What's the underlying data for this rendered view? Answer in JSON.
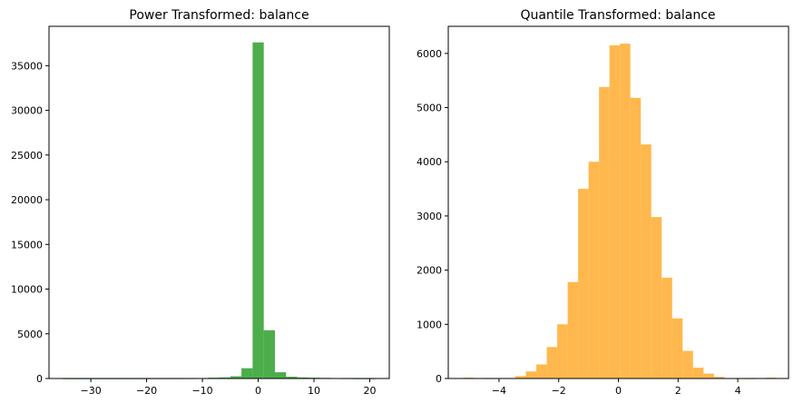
{
  "chart_data": [
    {
      "type": "bar",
      "subtype": "histogram",
      "title": "Power Transformed: balance",
      "color": "#2ca02c",
      "opacity": 0.85,
      "xlim": [
        -37.5,
        23.5
      ],
      "ylim": [
        0,
        39400
      ],
      "xticks": [
        -30,
        -20,
        -10,
        0,
        10,
        20
      ],
      "yticks": [
        0,
        5000,
        10000,
        15000,
        20000,
        25000,
        30000,
        35000
      ],
      "bins": [
        {
          "x0": -35.0,
          "x1": -33.0,
          "count": 3
        },
        {
          "x0": -33.0,
          "x1": -31.0,
          "count": 2
        },
        {
          "x0": -31.0,
          "x1": -29.0,
          "count": 3
        },
        {
          "x0": -29.0,
          "x1": -27.0,
          "count": 4
        },
        {
          "x0": -27.0,
          "x1": -25.0,
          "count": 5
        },
        {
          "x0": -25.0,
          "x1": -23.0,
          "count": 6
        },
        {
          "x0": -23.0,
          "x1": -21.0,
          "count": 7
        },
        {
          "x0": -21.0,
          "x1": -19.0,
          "count": 8
        },
        {
          "x0": -19.0,
          "x1": -17.0,
          "count": 10
        },
        {
          "x0": -17.0,
          "x1": -15.0,
          "count": 12
        },
        {
          "x0": -15.0,
          "x1": -13.0,
          "count": 15
        },
        {
          "x0": -13.0,
          "x1": -11.0,
          "count": 20
        },
        {
          "x0": -11.0,
          "x1": -9.0,
          "count": 40
        },
        {
          "x0": -9.0,
          "x1": -7.0,
          "count": 90
        },
        {
          "x0": -7.0,
          "x1": -5.0,
          "count": 120
        },
        {
          "x0": -5.0,
          "x1": -3.0,
          "count": 250
        },
        {
          "x0": -3.0,
          "x1": -1.0,
          "count": 1150
        },
        {
          "x0": -1.0,
          "x1": 1.0,
          "count": 37600
        },
        {
          "x0": 1.0,
          "x1": 3.0,
          "count": 5400
        },
        {
          "x0": 3.0,
          "x1": 5.0,
          "count": 700
        },
        {
          "x0": 5.0,
          "x1": 7.0,
          "count": 200
        },
        {
          "x0": 7.0,
          "x1": 9.0,
          "count": 120
        },
        {
          "x0": 9.0,
          "x1": 11.0,
          "count": 90
        },
        {
          "x0": 11.0,
          "x1": 13.0,
          "count": 70
        },
        {
          "x0": 13.0,
          "x1": 15.0,
          "count": 50
        },
        {
          "x0": 15.0,
          "x1": 17.0,
          "count": 20
        },
        {
          "x0": 17.0,
          "x1": 19.0,
          "count": 5
        },
        {
          "x0": 19.0,
          "x1": 21.0,
          "count": 3
        }
      ]
    },
    {
      "type": "bar",
      "subtype": "histogram",
      "title": "Quantile Transformed: balance",
      "color": "#ffb84d",
      "opacity": 1,
      "xlim": [
        -5.7,
        5.7
      ],
      "ylim": [
        0,
        6500
      ],
      "xticks": [
        -4,
        -2,
        0,
        2,
        4
      ],
      "yticks": [
        0,
        1000,
        2000,
        3000,
        4000,
        5000,
        6000
      ],
      "bins": [
        {
          "x0": -5.2,
          "x1": -4.85,
          "count": 15
        },
        {
          "x0": -4.85,
          "x1": -4.5,
          "count": 0
        },
        {
          "x0": -4.5,
          "x1": -4.15,
          "count": 2
        },
        {
          "x0": -4.15,
          "x1": -3.8,
          "count": 5
        },
        {
          "x0": -3.8,
          "x1": -3.45,
          "count": 10
        },
        {
          "x0": -3.45,
          "x1": -3.1,
          "count": 45
        },
        {
          "x0": -3.1,
          "x1": -2.75,
          "count": 130
        },
        {
          "x0": -2.75,
          "x1": -2.4,
          "count": 260
        },
        {
          "x0": -2.4,
          "x1": -2.05,
          "count": 580
        },
        {
          "x0": -2.05,
          "x1": -1.7,
          "count": 1000
        },
        {
          "x0": -1.7,
          "x1": -1.35,
          "count": 1780
        },
        {
          "x0": -1.35,
          "x1": -1.0,
          "count": 3500
        },
        {
          "x0": -1.0,
          "x1": -0.65,
          "count": 4000
        },
        {
          "x0": -0.65,
          "x1": -0.3,
          "count": 5380
        },
        {
          "x0": -0.3,
          "x1": 0.05,
          "count": 6150
        },
        {
          "x0": 0.05,
          "x1": 0.4,
          "count": 6180
        },
        {
          "x0": 0.4,
          "x1": 0.75,
          "count": 5180
        },
        {
          "x0": 0.75,
          "x1": 1.1,
          "count": 4320
        },
        {
          "x0": 1.1,
          "x1": 1.45,
          "count": 2980
        },
        {
          "x0": 1.45,
          "x1": 1.8,
          "count": 1860
        },
        {
          "x0": 1.8,
          "x1": 2.15,
          "count": 1110
        },
        {
          "x0": 2.15,
          "x1": 2.5,
          "count": 510
        },
        {
          "x0": 2.5,
          "x1": 2.85,
          "count": 200
        },
        {
          "x0": 2.85,
          "x1": 3.2,
          "count": 90
        },
        {
          "x0": 3.2,
          "x1": 3.55,
          "count": 30
        },
        {
          "x0": 3.55,
          "x1": 3.9,
          "count": 8
        },
        {
          "x0": 3.9,
          "x1": 4.25,
          "count": 3
        },
        {
          "x0": 4.25,
          "x1": 4.6,
          "count": 1
        },
        {
          "x0": 4.6,
          "x1": 4.95,
          "count": 0
        },
        {
          "x0": 4.95,
          "x1": 5.3,
          "count": 15
        }
      ]
    }
  ]
}
